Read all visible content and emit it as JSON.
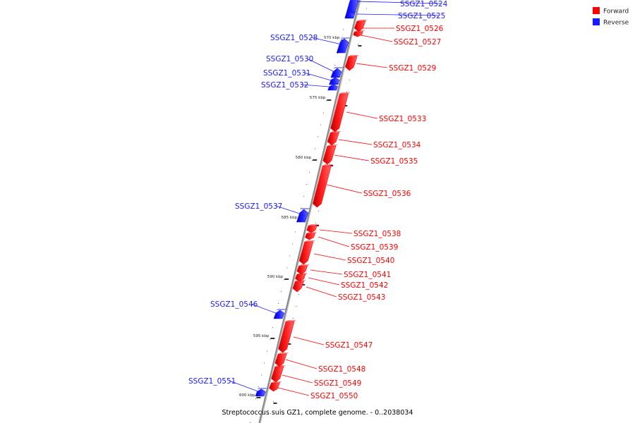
{
  "colors": {
    "forward": "#ff0000",
    "reverse": "#1a1aff",
    "backbone": "#888888"
  },
  "legend": {
    "forward": "Forward",
    "reverse": "Reverse"
  },
  "caption": "Streptococcus suis GZ1, complete genome. - 0..2038034",
  "ticks": [
    "570 kbp",
    "575 kbp",
    "580 kbp",
    "585 kbp",
    "590 kbp",
    "595 kbp",
    "600 kbp"
  ],
  "genes": [
    {
      "id": "SSGZ1_0524",
      "strand": "reverse"
    },
    {
      "id": "SSGZ1_0525",
      "strand": "reverse"
    },
    {
      "id": "SSGZ1_0526",
      "strand": "forward"
    },
    {
      "id": "SSGZ1_0527",
      "strand": "forward"
    },
    {
      "id": "SSGZ1_0528",
      "strand": "reverse"
    },
    {
      "id": "SSGZ1_0529",
      "strand": "forward"
    },
    {
      "id": "SSGZ1_0530",
      "strand": "reverse"
    },
    {
      "id": "SSGZ1_0531",
      "strand": "reverse"
    },
    {
      "id": "SSGZ1_0532",
      "strand": "reverse"
    },
    {
      "id": "SSGZ1_0533",
      "strand": "forward"
    },
    {
      "id": "SSGZ1_0534",
      "strand": "forward"
    },
    {
      "id": "SSGZ1_0535",
      "strand": "forward"
    },
    {
      "id": "SSGZ1_0536",
      "strand": "forward"
    },
    {
      "id": "SSGZ1_0537",
      "strand": "reverse"
    },
    {
      "id": "SSGZ1_0538",
      "strand": "forward"
    },
    {
      "id": "SSGZ1_0539",
      "strand": "forward"
    },
    {
      "id": "SSGZ1_0540",
      "strand": "forward"
    },
    {
      "id": "SSGZ1_0541",
      "strand": "forward"
    },
    {
      "id": "SSGZ1_0542",
      "strand": "forward"
    },
    {
      "id": "SSGZ1_0543",
      "strand": "forward"
    },
    {
      "id": "SSGZ1_0546",
      "strand": "reverse"
    },
    {
      "id": "SSGZ1_0547",
      "strand": "forward"
    },
    {
      "id": "SSGZ1_0548",
      "strand": "forward"
    },
    {
      "id": "SSGZ1_0549",
      "strand": "forward"
    },
    {
      "id": "SSGZ1_0550",
      "strand": "forward"
    },
    {
      "id": "SSGZ1_0551",
      "strand": "reverse"
    }
  ]
}
